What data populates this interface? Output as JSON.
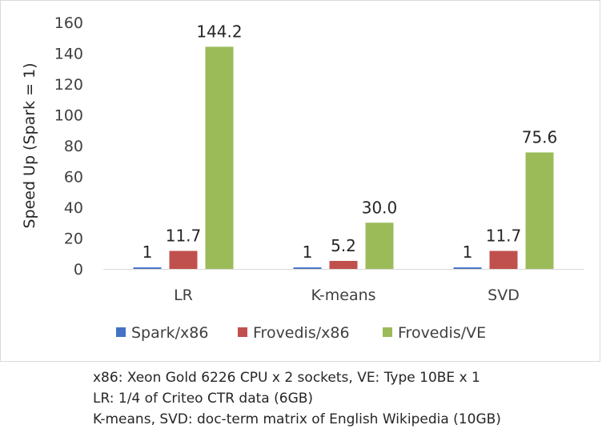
{
  "chart_data": {
    "type": "bar",
    "title": "",
    "xlabel": "",
    "ylabel": "Speed Up (Spark = 1)",
    "ylim": [
      0,
      160
    ],
    "yticks": [
      0,
      20,
      40,
      60,
      80,
      100,
      120,
      140,
      160
    ],
    "grid": false,
    "legend_position": "bottom",
    "categories": [
      "LR",
      "K-means",
      "SVD"
    ],
    "series": [
      {
        "name": "Spark/x86",
        "color": "#4472c4",
        "values": [
          1,
          1,
          1
        ],
        "labels": [
          "1",
          "1",
          "1"
        ]
      },
      {
        "name": "Frovedis/x86",
        "color": "#c0504d",
        "values": [
          11.7,
          5.2,
          11.7
        ],
        "labels": [
          "11.7",
          "5.2",
          "11.7"
        ]
      },
      {
        "name": "Frovedis/VE",
        "color": "#9bbb59",
        "values": [
          144.2,
          30.0,
          75.6
        ],
        "labels": [
          "144.2",
          "30.0",
          "75.6"
        ]
      }
    ]
  },
  "notes": [
    "x86: Xeon Gold 6226 CPU x 2 sockets, VE: Type 10BE x 1",
    "LR: 1/4 of Criteo CTR data (6GB)",
    "K-means, SVD: doc-term matrix of English Wikipedia (10GB)"
  ]
}
